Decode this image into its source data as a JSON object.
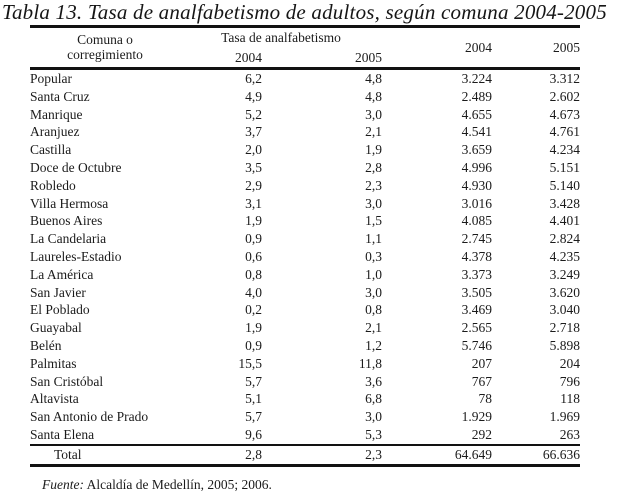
{
  "title": "Tabla 13. Tasa de analfabetismo de adultos, según comuna 2004-2005",
  "table": {
    "header": {
      "comuna_line1": "Comuna o",
      "comuna_line2": "corregimiento",
      "tasa_group": "Tasa de analfabetismo",
      "tasa_2004": "2004",
      "tasa_2005": "2005",
      "abs_2004": "2004",
      "abs_2005": "2005"
    },
    "rows": [
      {
        "name": "Popular",
        "tasa_2004": "6,2",
        "tasa_2005": "4,8",
        "abs_2004": "3.224",
        "abs_2005": "3.312"
      },
      {
        "name": "Santa Cruz",
        "tasa_2004": "4,9",
        "tasa_2005": "4,8",
        "abs_2004": "2.489",
        "abs_2005": "2.602"
      },
      {
        "name": "Manrique",
        "tasa_2004": "5,2",
        "tasa_2005": "3,0",
        "abs_2004": "4.655",
        "abs_2005": "4.673"
      },
      {
        "name": "Aranjuez",
        "tasa_2004": "3,7",
        "tasa_2005": "2,1",
        "abs_2004": "4.541",
        "abs_2005": "4.761"
      },
      {
        "name": "Castilla",
        "tasa_2004": "2,0",
        "tasa_2005": "1,9",
        "abs_2004": "3.659",
        "abs_2005": "4.234"
      },
      {
        "name": "Doce de Octubre",
        "tasa_2004": "3,5",
        "tasa_2005": "2,8",
        "abs_2004": "4.996",
        "abs_2005": "5.151"
      },
      {
        "name": "Robledo",
        "tasa_2004": "2,9",
        "tasa_2005": "2,3",
        "abs_2004": "4.930",
        "abs_2005": "5.140"
      },
      {
        "name": "Villa Hermosa",
        "tasa_2004": "3,1",
        "tasa_2005": "3,0",
        "abs_2004": "3.016",
        "abs_2005": "3.428"
      },
      {
        "name": "Buenos Aires",
        "tasa_2004": "1,9",
        "tasa_2005": "1,5",
        "abs_2004": "4.085",
        "abs_2005": "4.401"
      },
      {
        "name": "La Candelaria",
        "tasa_2004": "0,9",
        "tasa_2005": "1,1",
        "abs_2004": "2.745",
        "abs_2005": "2.824"
      },
      {
        "name": "Laureles-Estadio",
        "tasa_2004": "0,6",
        "tasa_2005": "0,3",
        "abs_2004": "4.378",
        "abs_2005": "4.235"
      },
      {
        "name": "La América",
        "tasa_2004": "0,8",
        "tasa_2005": "1,0",
        "abs_2004": "3.373",
        "abs_2005": "3.249"
      },
      {
        "name": "San Javier",
        "tasa_2004": "4,0",
        "tasa_2005": "3,0",
        "abs_2004": "3.505",
        "abs_2005": "3.620"
      },
      {
        "name": "El Poblado",
        "tasa_2004": "0,2",
        "tasa_2005": "0,8",
        "abs_2004": "3.469",
        "abs_2005": "3.040"
      },
      {
        "name": "Guayabal",
        "tasa_2004": "1,9",
        "tasa_2005": "2,1",
        "abs_2004": "2.565",
        "abs_2005": "2.718"
      },
      {
        "name": "Belén",
        "tasa_2004": "0,9",
        "tasa_2005": "1,2",
        "abs_2004": "5.746",
        "abs_2005": "5.898"
      },
      {
        "name": "Palmitas",
        "tasa_2004": "15,5",
        "tasa_2005": "11,8",
        "abs_2004": "207",
        "abs_2005": "204"
      },
      {
        "name": "San Cristóbal",
        "tasa_2004": "5,7",
        "tasa_2005": "3,6",
        "abs_2004": "767",
        "abs_2005": "796"
      },
      {
        "name": "Altavista",
        "tasa_2004": "5,1",
        "tasa_2005": "6,8",
        "abs_2004": "78",
        "abs_2005": "118"
      },
      {
        "name": "San Antonio de Prado",
        "tasa_2004": "5,7",
        "tasa_2005": "3,0",
        "abs_2004": "1.929",
        "abs_2005": "1.969"
      },
      {
        "name": "Santa Elena",
        "tasa_2004": "9,6",
        "tasa_2005": "5,3",
        "abs_2004": "292",
        "abs_2005": "263"
      }
    ],
    "total": {
      "name": "Total",
      "tasa_2004": "2,8",
      "tasa_2005": "2,3",
      "abs_2004": "64.649",
      "abs_2005": "66.636"
    }
  },
  "source": {
    "label": "Fuente:",
    "text": " Alcaldía de Medellín, 2005; 2006."
  }
}
